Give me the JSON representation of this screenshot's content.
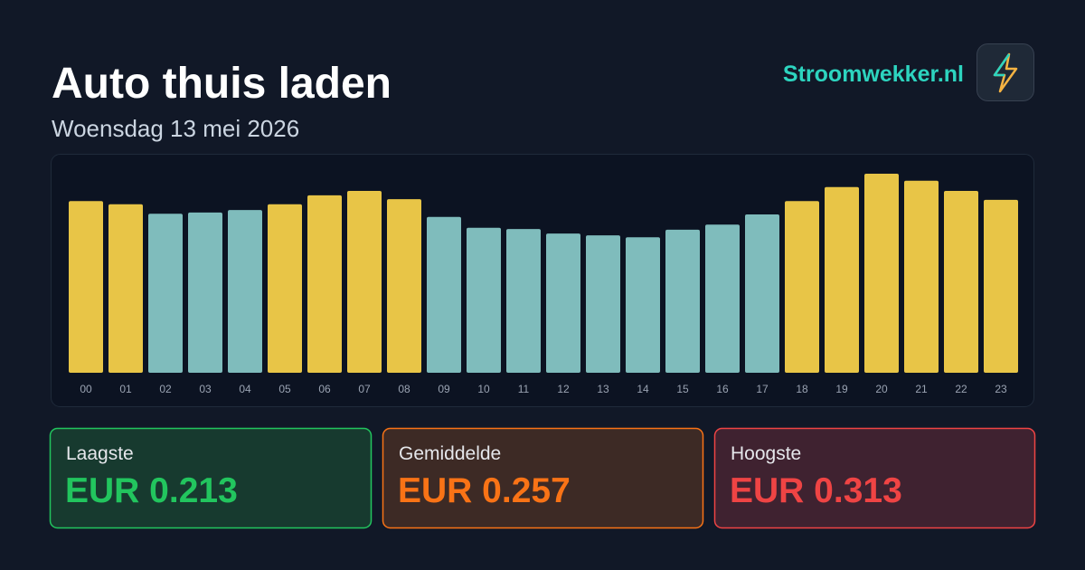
{
  "chart_data": {
    "type": "bar",
    "title": "Auto thuis laden",
    "subtitle": "Woensdag 13 mei 2026",
    "categories": [
      "00",
      "01",
      "02",
      "03",
      "04",
      "05",
      "06",
      "07",
      "08",
      "09",
      "10",
      "11",
      "12",
      "13",
      "14",
      "15",
      "16",
      "17",
      "18",
      "19",
      "20",
      "21",
      "22",
      "23"
    ],
    "values": [
      0.27,
      0.265,
      0.25,
      0.252,
      0.256,
      0.265,
      0.279,
      0.286,
      0.273,
      0.245,
      0.228,
      0.226,
      0.219,
      0.216,
      0.213,
      0.225,
      0.233,
      0.249,
      0.27,
      0.292,
      0.313,
      0.302,
      0.286,
      0.272
    ],
    "colors": [
      "#e8c547",
      "#e8c547",
      "#7fbcbc",
      "#7fbcbc",
      "#7fbcbc",
      "#e8c547",
      "#e8c547",
      "#e8c547",
      "#e8c547",
      "#7fbcbc",
      "#7fbcbc",
      "#7fbcbc",
      "#7fbcbc",
      "#7fbcbc",
      "#7fbcbc",
      "#7fbcbc",
      "#7fbcbc",
      "#7fbcbc",
      "#e8c547",
      "#e8c547",
      "#e8c547",
      "#e8c547",
      "#e8c547",
      "#e8c547"
    ]
  },
  "brand": "Stroomwekker.nl",
  "stats": [
    {
      "label": "Laagste",
      "value": "EUR 0.213"
    },
    {
      "label": "Gemiddelde",
      "value": "EUR 0.257"
    },
    {
      "label": "Hoogste",
      "value": "EUR 0.313"
    }
  ]
}
